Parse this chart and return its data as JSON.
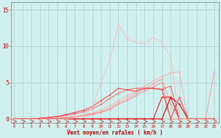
{
  "background_color": "#cff0ec",
  "grid_color": "#aacccc",
  "text_color": "#cc0000",
  "xlabel": "Vent moyen/en rafales ( km/h )",
  "x_ticks": [
    0,
    1,
    2,
    3,
    4,
    5,
    6,
    7,
    8,
    9,
    10,
    11,
    12,
    13,
    14,
    15,
    16,
    17,
    18,
    19,
    20,
    21,
    22,
    23
  ],
  "ylim": [
    -0.5,
    16
  ],
  "xlim": [
    -0.3,
    23.5
  ],
  "yticks": [
    0,
    5,
    10,
    15
  ],
  "series": [
    {
      "color": "#ffaaaa",
      "lw": 0.7,
      "x": [
        0,
        1,
        2,
        3,
        4,
        5,
        6,
        7,
        8,
        9,
        10,
        11,
        12,
        13,
        14,
        15,
        16,
        17,
        18,
        19,
        20,
        21,
        22,
        23
      ],
      "y": [
        0,
        0,
        0,
        0,
        0.05,
        0.1,
        0.2,
        0.35,
        0.55,
        0.8,
        1.2,
        1.8,
        2.5,
        3.2,
        3.8,
        4.5,
        5.2,
        5.8,
        6.3,
        6.5,
        0,
        0,
        0,
        0
      ]
    },
    {
      "color": "#ff9999",
      "lw": 0.7,
      "x": [
        0,
        1,
        2,
        3,
        4,
        5,
        6,
        7,
        8,
        9,
        10,
        11,
        12,
        13,
        14,
        15,
        16,
        17,
        18,
        19,
        20,
        21,
        22,
        23
      ],
      "y": [
        0,
        0,
        0,
        0,
        0.05,
        0.1,
        0.2,
        0.3,
        0.5,
        0.7,
        1.0,
        1.5,
        2.2,
        2.8,
        3.5,
        4.1,
        4.8,
        5.5,
        2.0,
        0,
        0,
        0,
        0,
        6.5
      ]
    },
    {
      "color": "#ff8888",
      "lw": 0.7,
      "x": [
        0,
        1,
        2,
        3,
        4,
        5,
        6,
        7,
        8,
        9,
        10,
        11,
        12,
        13,
        14,
        15,
        16,
        17,
        18,
        19,
        20,
        21,
        22,
        23
      ],
      "y": [
        0,
        0,
        0,
        0,
        0.05,
        0.1,
        0.15,
        0.25,
        0.4,
        0.6,
        0.9,
        1.3,
        2.0,
        2.5,
        3.2,
        3.8,
        4.4,
        5.0,
        0,
        0,
        0,
        0,
        0,
        0
      ]
    },
    {
      "color": "#ff6666",
      "lw": 0.8,
      "x": [
        0,
        1,
        2,
        3,
        4,
        5,
        6,
        7,
        8,
        9,
        10,
        11,
        12,
        13,
        14,
        15,
        16,
        17,
        18,
        19,
        20,
        21,
        22,
        23
      ],
      "y": [
        0,
        0,
        0,
        0.1,
        0.2,
        0.3,
        0.5,
        0.7,
        1.0,
        1.4,
        2.0,
        2.8,
        3.5,
        4.0,
        4.2,
        4.2,
        4.2,
        4.1,
        4.5,
        0,
        0,
        0,
        0,
        0
      ]
    },
    {
      "color": "#ff4444",
      "lw": 0.8,
      "x": [
        0,
        1,
        2,
        3,
        4,
        5,
        6,
        7,
        8,
        9,
        10,
        11,
        12,
        13,
        14,
        15,
        16,
        17,
        18,
        19,
        20,
        21,
        22,
        23
      ],
      "y": [
        0,
        0,
        0,
        0.1,
        0.2,
        0.35,
        0.6,
        0.9,
        1.2,
        1.7,
        2.5,
        3.3,
        4.2,
        4.0,
        3.8,
        4.2,
        4.2,
        4.0,
        0,
        3.0,
        0,
        0,
        0,
        0
      ]
    },
    {
      "color": "#ff2222",
      "lw": 0.9,
      "x": [
        0,
        1,
        2,
        3,
        4,
        5,
        6,
        7,
        8,
        9,
        10,
        11,
        12,
        13,
        14,
        15,
        16,
        17,
        18,
        19,
        20,
        21,
        22,
        23
      ],
      "y": [
        0,
        0,
        0,
        0,
        0,
        0,
        0,
        0,
        0,
        0,
        0,
        0,
        0,
        0,
        0,
        0,
        0,
        3.0,
        3.0,
        0,
        0,
        0,
        0,
        0
      ]
    },
    {
      "color": "#ee0000",
      "lw": 0.9,
      "x": [
        0,
        1,
        2,
        3,
        4,
        5,
        6,
        7,
        8,
        9,
        10,
        11,
        12,
        13,
        14,
        15,
        16,
        17,
        18,
        19,
        20,
        21,
        22,
        23
      ],
      "y": [
        0,
        0,
        0,
        0,
        0,
        0,
        0,
        0,
        0,
        0,
        0,
        0,
        0,
        0,
        0,
        0,
        0,
        0,
        3.0,
        2.0,
        0,
        0,
        0,
        0
      ]
    },
    {
      "color": "#ffbbbb",
      "lw": 0.7,
      "x": [
        0,
        1,
        2,
        3,
        4,
        5,
        6,
        7,
        8,
        9,
        10,
        11,
        12,
        13,
        14,
        15,
        16,
        17,
        18,
        19,
        20,
        21,
        22,
        23
      ],
      "y": [
        0,
        0,
        0,
        0,
        0,
        0,
        0,
        0.2,
        0.5,
        1.5,
        5.0,
        8.0,
        13.0,
        11.0,
        10.5,
        10.3,
        11.2,
        10.5,
        8.5,
        0,
        0,
        0,
        0,
        0
      ]
    }
  ]
}
